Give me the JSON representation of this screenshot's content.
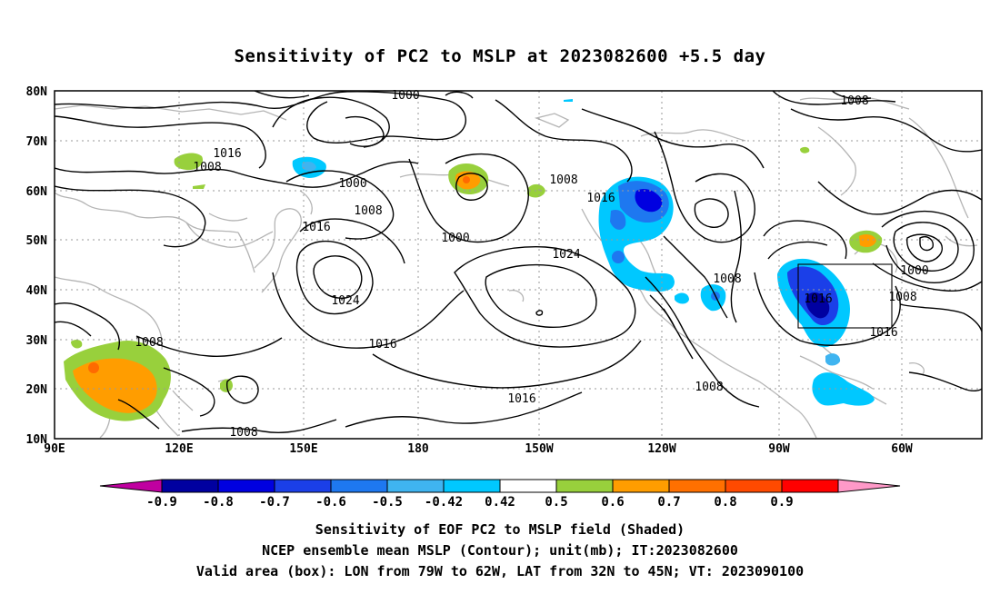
{
  "title": "Sensitivity of PC2 to MSLP at 2023082600 +5.5 day",
  "map": {
    "lat_labels": [
      "80N",
      "70N",
      "60N",
      "50N",
      "40N",
      "30N",
      "20N",
      "10N"
    ],
    "lon_labels": [
      "90E",
      "120E",
      "150E",
      "180",
      "150W",
      "120W",
      "90W",
      "60W"
    ],
    "lat_range": [
      10,
      80
    ],
    "lon_range": [
      "90E",
      "35W"
    ],
    "grid": "dotted",
    "contour_labels": [
      "1000",
      "1008",
      "1016",
      "1008",
      "1000",
      "1008",
      "1016",
      "1024",
      "1000",
      "1008",
      "1024",
      "1016",
      "1008",
      "1016",
      "1016",
      "1008",
      "1016",
      "1008",
      "1008",
      "1008",
      "1016",
      "1008",
      "1000"
    ],
    "valid_area_box": {
      "lon": [
        "79W",
        "62W"
      ],
      "lat": [
        "32N",
        "45N"
      ]
    }
  },
  "colorbar": {
    "labels": [
      "-0.9",
      "-0.8",
      "-0.7",
      "-0.6",
      "-0.5",
      "-0.42",
      "0.42",
      "0.5",
      "0.6",
      "0.7",
      "0.8",
      "0.9"
    ],
    "colors": [
      "#c000a0",
      "#0000a0",
      "#0000e0",
      "#1b3fe8",
      "#1e78f0",
      "#3fb4f0",
      "#00c8ff",
      "#ffffff",
      "#98d03c",
      "#ff9d00",
      "#ff7000",
      "#ff4a00",
      "#ff0000",
      "#ff99c8"
    ]
  },
  "footer": {
    "line1": "Sensitivity of EOF PC2 to MSLP field (Shaded)",
    "line2": "NCEP ensemble mean MSLP (Contour); unit(mb); IT:2023082600",
    "line3": "Valid area (box): LON from 79W to 62W, LAT from 32N to 45N; VT: 2023090100"
  }
}
